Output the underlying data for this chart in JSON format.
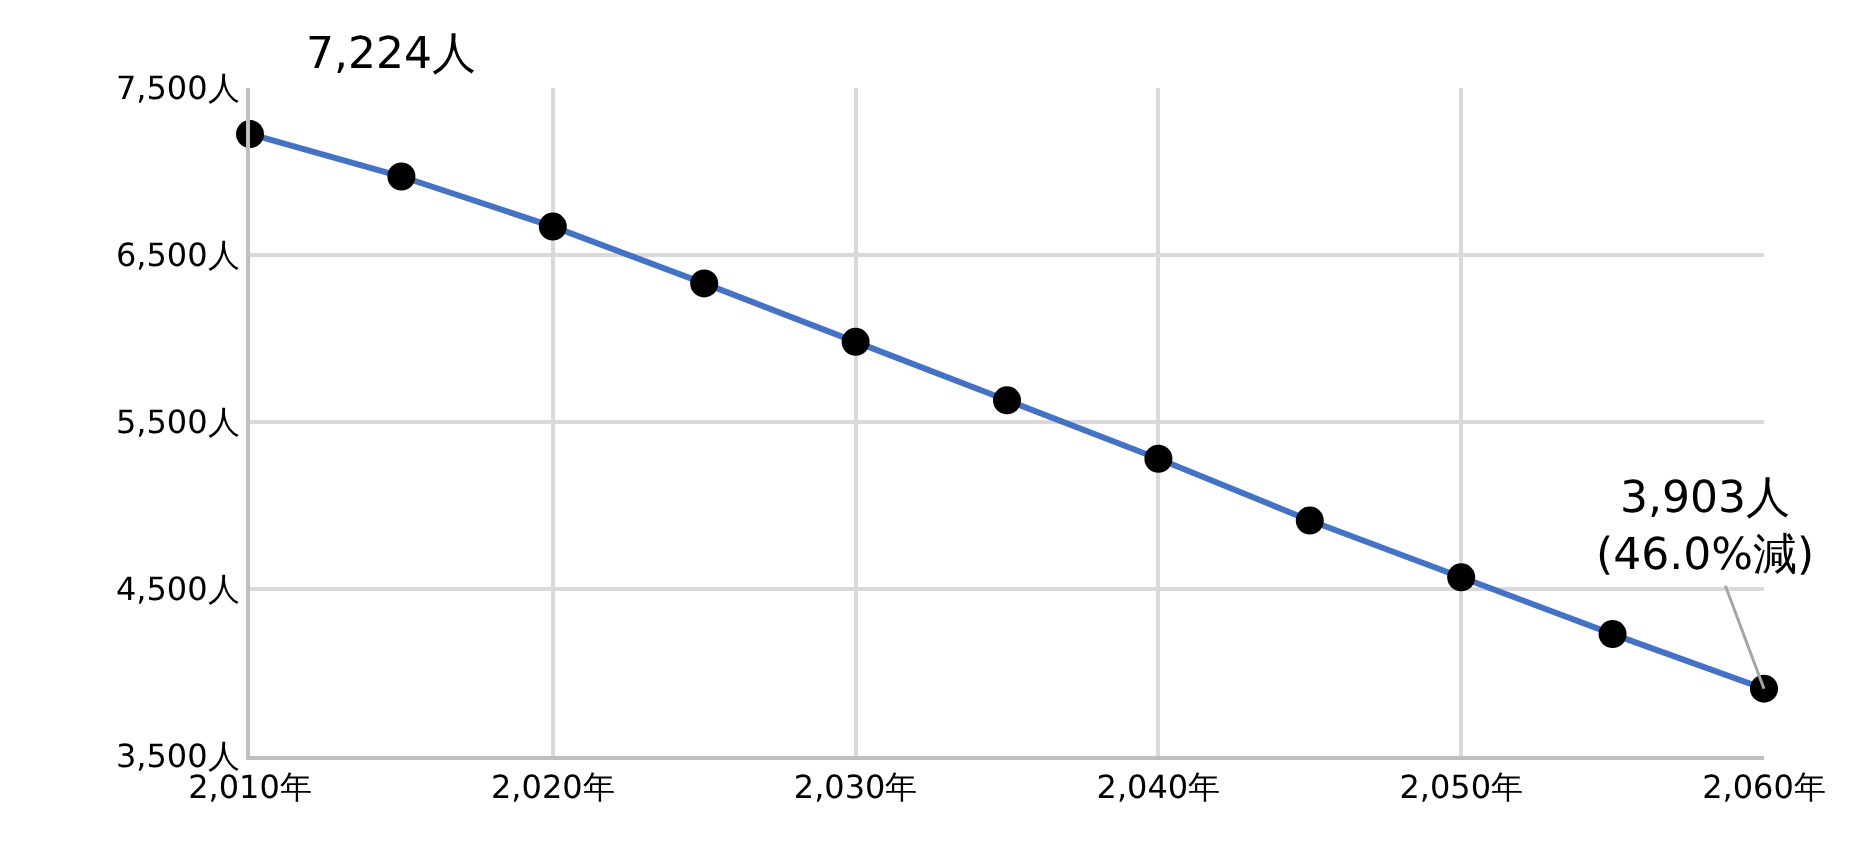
{
  "chart_data": {
    "type": "line",
    "x": [
      2010,
      2015,
      2020,
      2025,
      2030,
      2035,
      2040,
      2045,
      2050,
      2055,
      2060
    ],
    "series": [
      {
        "color": "#4472c4",
        "colors": [
          "#000000",
          "#000000",
          "#000000",
          "#000000",
          "#000000",
          "#000000",
          "#000000",
          "#000000",
          "#000000",
          "#000000",
          "#000000"
        ],
        "values": [
          7224,
          6970,
          6670,
          6330,
          5980,
          5630,
          5280,
          4910,
          4570,
          4230,
          3903
        ]
      }
    ],
    "xlim": [
      2010,
      2060
    ],
    "xticks": [
      {
        "value": 2010,
        "label": "2,010年"
      },
      {
        "value": 2020,
        "label": "2,020年"
      },
      {
        "value": 2030,
        "label": "2,030年"
      },
      {
        "value": 2040,
        "label": "2,040年"
      },
      {
        "value": 2050,
        "label": "2,050年"
      },
      {
        "value": 2060,
        "label": "2,060年"
      }
    ],
    "ylim": [
      3500,
      7500
    ],
    "yticks": [
      {
        "value": 3500,
        "label": "3,500人"
      },
      {
        "value": 4500,
        "label": "4,500人"
      },
      {
        "value": 5500,
        "label": "5,500人"
      },
      {
        "value": 6500,
        "label": "6,500人"
      },
      {
        "value": 7500,
        "label": "7,500人"
      }
    ],
    "grid": true,
    "marker": "circle",
    "line_style": "solid",
    "annotations": [
      {
        "text": "7,224人",
        "x": 2010,
        "y": 7224
      },
      {
        "text": "3,903人\n(46.0%減)",
        "x": 2060,
        "y": 3903
      }
    ]
  }
}
